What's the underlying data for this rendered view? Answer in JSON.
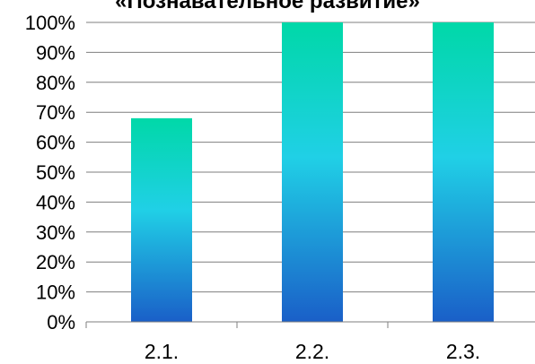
{
  "chart_data": {
    "type": "bar",
    "title": "«Познавательное развитие»",
    "categories": [
      "2.1.",
      "2.2.",
      "2.3."
    ],
    "values": [
      68,
      100,
      100
    ],
    "ylim": [
      0,
      100
    ],
    "ytick_step": 10,
    "ytick_format": "percent",
    "grid": true,
    "legend": "none",
    "colors": {
      "bar_bottom": "#1a5fc8",
      "bar_mid": "#20d0e6",
      "bar_top": "#00d8a8",
      "grid": "#7f7f7f",
      "axis": "#7f7f7f"
    }
  }
}
